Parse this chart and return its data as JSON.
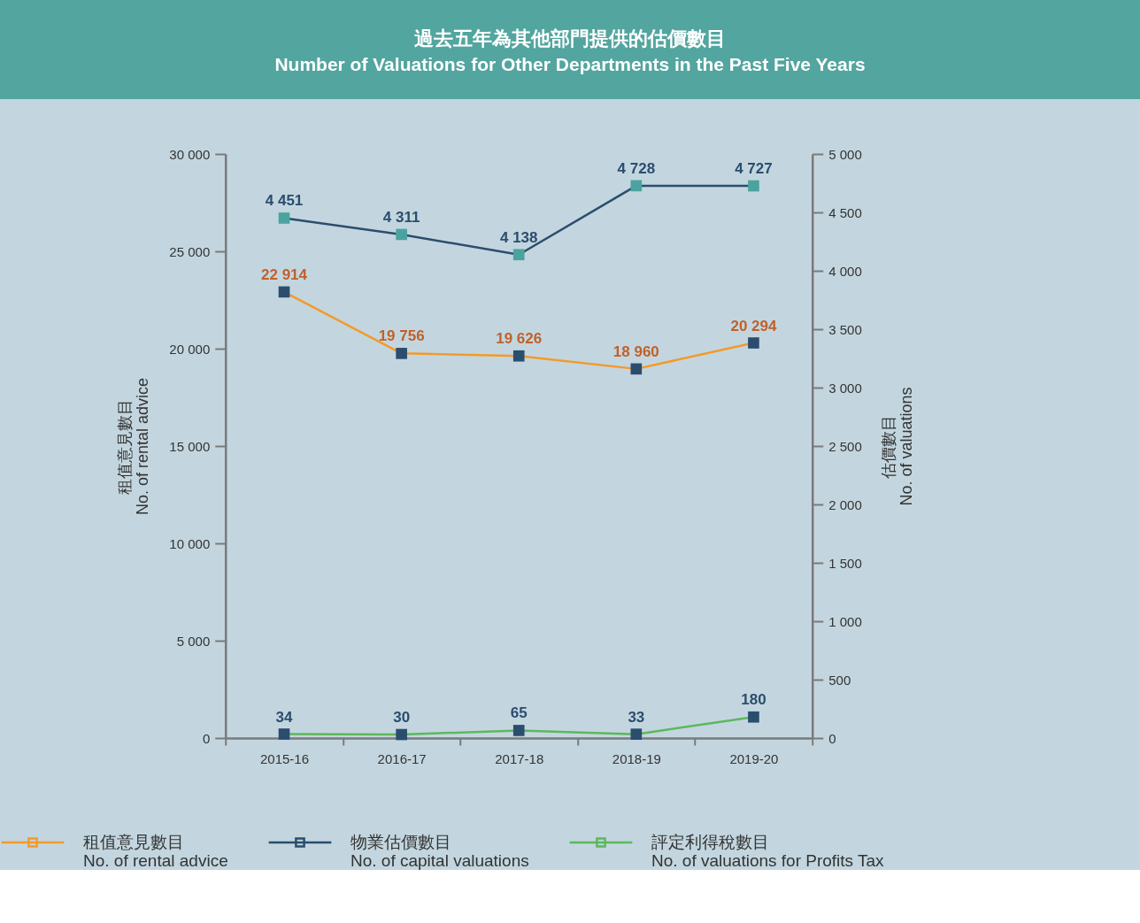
{
  "chart_data": {
    "type": "line",
    "title": "過去五年為其他部門提供的估價數目",
    "subtitle": "Number of Valuations for Other Departments in the Past Five Years",
    "categories": [
      "2015-16",
      "2016-17",
      "2017-18",
      "2018-19",
      "2019-20"
    ],
    "ylabel": "租值意見數目\nNo. of rental advice",
    "y2label": "估價數目\nNo. of valuations",
    "ylim": [
      0,
      30000
    ],
    "yticks": [
      0,
      {
        "value": 5000,
        "label": "5 000"
      },
      {
        "value": 10000,
        "label": "10 000"
      },
      {
        "value": 15000,
        "label": "15 000"
      },
      {
        "value": 20000,
        "label": "20 000"
      },
      {
        "value": 25000,
        "label": "25 000"
      },
      {
        "value": 30000,
        "label": "30 000"
      }
    ],
    "y2lim": [
      0,
      5000
    ],
    "y2ticks": [
      0,
      500,
      {
        "value": 1000,
        "label": "1 000"
      },
      {
        "value": 1500,
        "label": "1 500"
      },
      {
        "value": 2000,
        "label": "2 000"
      },
      {
        "value": 2500,
        "label": "2 500"
      },
      {
        "value": 3000,
        "label": "3 000"
      },
      {
        "value": 3500,
        "label": "3 500"
      },
      {
        "value": 4000,
        "label": "4 000"
      },
      {
        "value": 4500,
        "label": "4 500"
      },
      {
        "value": 5000,
        "label": "5 000"
      }
    ],
    "series": [
      {
        "name": "租值意見數目\nNo. of rental advice",
        "color": "#f39a2a",
        "colors": [
          "#2b4d6e",
          "#2b4d6e",
          "#2b4d6e",
          "#2b4d6e",
          "#2b4d6e"
        ],
        "values": [
          22914,
          19756,
          19626,
          18960,
          20294
        ],
        "value_labels": [
          "22 914",
          "19 756",
          "19 626",
          "18 960",
          "20 294"
        ]
      },
      {
        "name": "物業估價數目\nNo. of capital valuations",
        "color": "#2b4d6e",
        "colors": [
          "#4aa39f",
          "#4aa39f",
          "#4aa39f",
          "#4aa39f",
          "#4aa39f"
        ],
        "axis": "y2",
        "values": [
          4451,
          4311,
          4138,
          4728,
          4727
        ],
        "value_labels": [
          "4 451",
          "4 311",
          "4 138",
          "4 728",
          "4 727"
        ]
      },
      {
        "name": "評定利得稅數目\nNo. of valuations for Profits Tax",
        "color": "#5cb85c",
        "colors": [
          "#2b4d6e",
          "#2b4d6e",
          "#2b4d6e",
          "#2b4d6e",
          "#2b4d6e"
        ],
        "axis": "y2",
        "values": [
          34,
          30,
          65,
          33,
          180
        ],
        "value_labels": [
          "34",
          "30",
          "65",
          "33",
          "180"
        ]
      }
    ],
    "marker": "square",
    "line_style": "solid",
    "grid": false,
    "legend": "bottom"
  }
}
